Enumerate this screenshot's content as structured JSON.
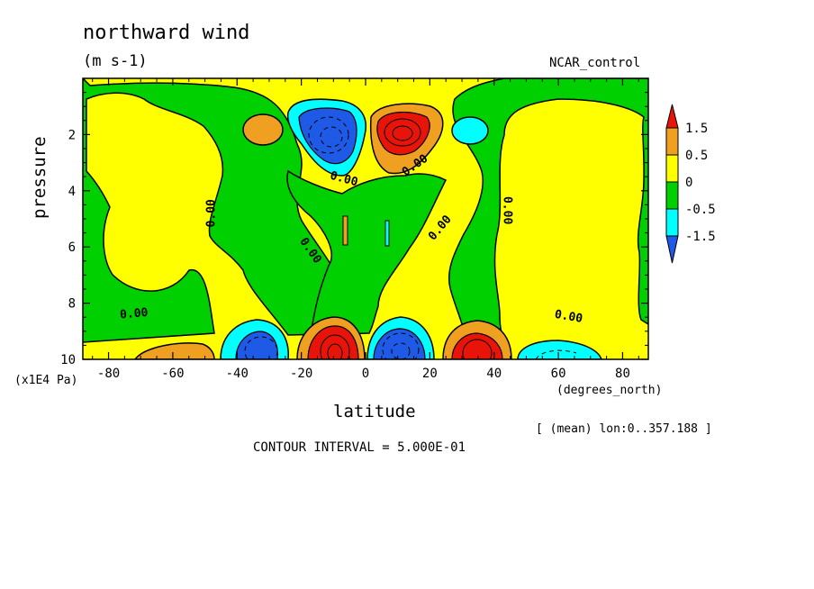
{
  "title": "northward wind",
  "units": "(m s-1)",
  "dataset": "NCAR_control",
  "xlabel": "latitude",
  "xunits": "(degrees_north)",
  "ylabel": "pressure",
  "yunits": "(x1E4 Pa)",
  "averaging_note": "[ (mean) lon:0..357.188 ]",
  "contour_interval": "CONTOUR INTERVAL = 5.000E-01",
  "colors": {
    "red": "#e8140a",
    "orange": "#f0a020",
    "yellow": "#ffff00",
    "green": "#00d000",
    "cyan": "#00ffff",
    "blue": "#1e5ae6"
  },
  "chart_data": {
    "type": "heatmap",
    "subtype": "filled-contour",
    "x_range": [
      -88,
      88
    ],
    "y_range": [
      0,
      10
    ],
    "y_inverted": true,
    "x_ticks": [
      -80,
      -60,
      -40,
      -20,
      0,
      20,
      40,
      60,
      80
    ],
    "x_tick_labels": [
      "-80",
      "-60",
      "-40",
      "-20",
      "0",
      "20",
      "40",
      "60",
      "80"
    ],
    "y_ticks": [
      2,
      4,
      6,
      8,
      10
    ],
    "y_tick_labels": [
      "2",
      "4",
      "6",
      "8",
      "10"
    ],
    "colorbar": {
      "labels": [
        "1.5",
        "0.5",
        "0",
        "-0.5",
        "-1.5"
      ],
      "levels": [
        -1.5,
        -0.5,
        0,
        0.5,
        1.5
      ],
      "colors": [
        "#1e5ae6",
        "#00ffff",
        "#00d000",
        "#ffff00",
        "#f0a020",
        "#e8140a"
      ]
    },
    "contour_labels": [
      {
        "text": "0.00",
        "lat": -72,
        "p": 8.5,
        "rot": -5
      },
      {
        "text": "0.00",
        "lat": -47,
        "p": 4.8,
        "rot": -90
      },
      {
        "text": "0.00",
        "lat": -18,
        "p": 6.2,
        "rot": 55
      },
      {
        "text": "0.00",
        "lat": -7,
        "p": 3.7,
        "rot": 15
      },
      {
        "text": "0.00",
        "lat": 16,
        "p": 3.2,
        "rot": -35
      },
      {
        "text": "0.00",
        "lat": 24,
        "p": 5.4,
        "rot": -50
      },
      {
        "text": "0.00",
        "lat": 43,
        "p": 4.7,
        "rot": 90
      },
      {
        "text": "0.00",
        "lat": 63,
        "p": 8.6,
        "rot": 10
      }
    ],
    "extrema": [
      {
        "sign": "negative",
        "lat": -8,
        "p": 2.2,
        "peak": -2.5
      },
      {
        "sign": "positive",
        "lat": 12,
        "p": 2.1,
        "peak": 2.5
      },
      {
        "sign": "negative",
        "lat": -33,
        "p": 9.6,
        "peak": -1.5
      },
      {
        "sign": "positive",
        "lat": -8,
        "p": 9.5,
        "peak": 2.5
      },
      {
        "sign": "negative",
        "lat": 11,
        "p": 9.5,
        "peak": -2.0
      },
      {
        "sign": "positive",
        "lat": 33,
        "p": 9.6,
        "peak": 2.0
      }
    ]
  }
}
